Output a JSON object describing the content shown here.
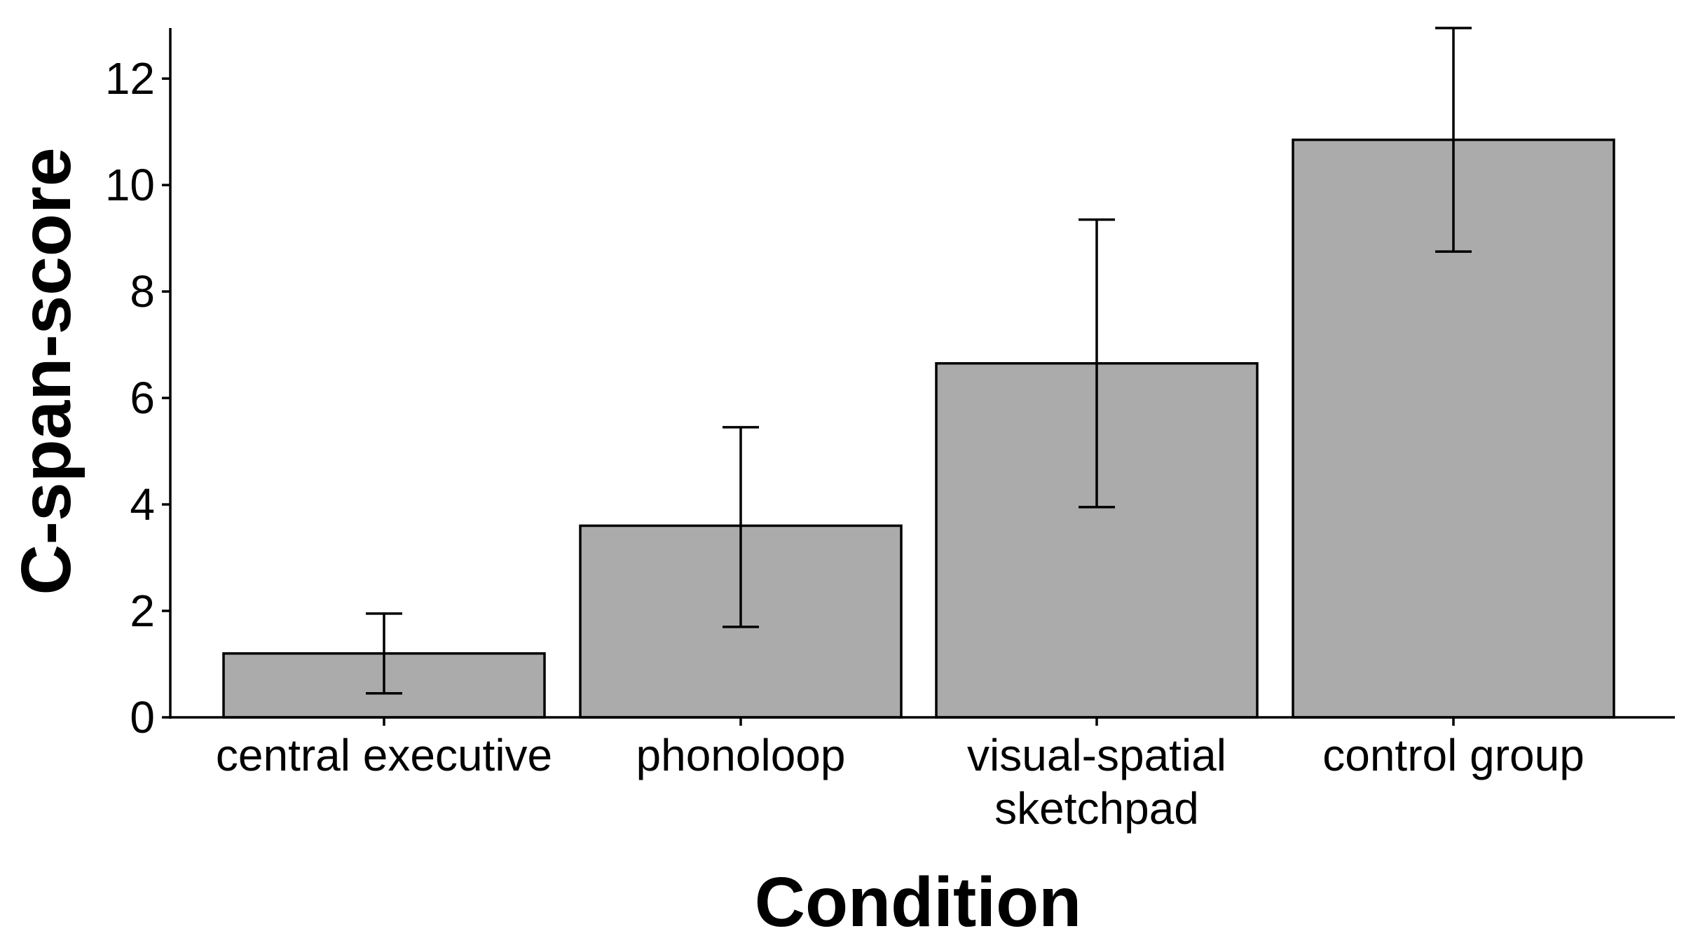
{
  "chart_data": {
    "type": "bar",
    "title": "",
    "xlabel": "Condition",
    "ylabel": "C-span-score",
    "categories": [
      [
        "central executive"
      ],
      [
        "phonoloop"
      ],
      [
        "visual-spatial",
        "sketchpad"
      ],
      [
        "control group"
      ]
    ],
    "values": [
      1.2,
      3.6,
      6.65,
      10.85
    ],
    "error_low": [
      0.45,
      1.7,
      3.95,
      8.75
    ],
    "error_high": [
      1.95,
      5.45,
      9.35,
      12.95
    ],
    "ylim": [
      0,
      12.95
    ],
    "yticks": [
      0,
      2,
      4,
      6,
      8,
      10,
      12
    ],
    "bar_color": "#ababab",
    "bar_edge_color": "#000000",
    "grid": false
  }
}
